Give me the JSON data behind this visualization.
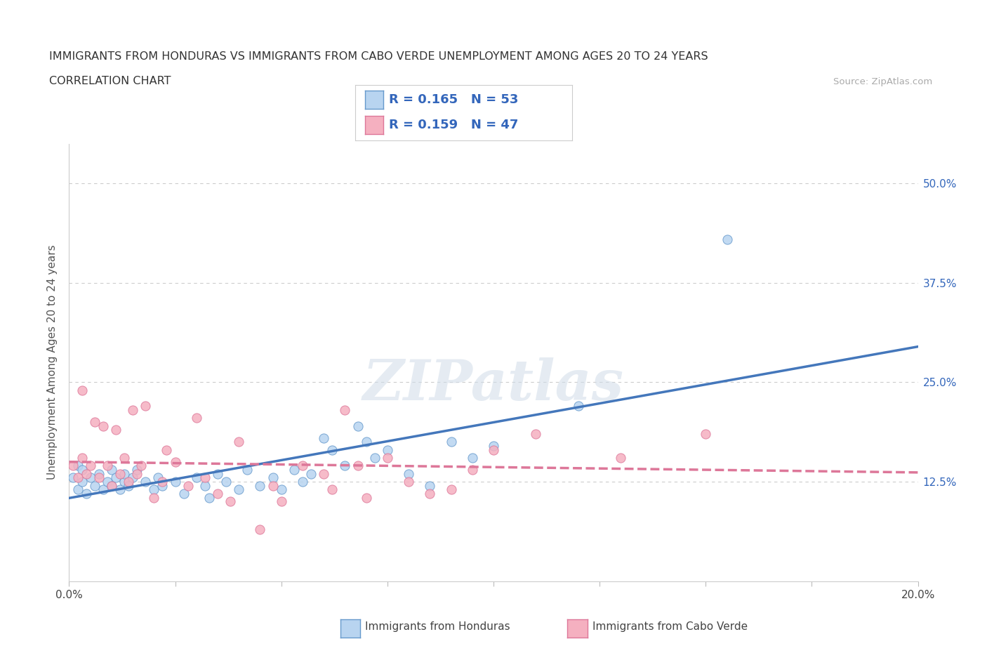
{
  "title_line1": "IMMIGRANTS FROM HONDURAS VS IMMIGRANTS FROM CABO VERDE UNEMPLOYMENT AMONG AGES 20 TO 24 YEARS",
  "title_line2": "CORRELATION CHART",
  "source_text": "Source: ZipAtlas.com",
  "ylabel": "Unemployment Among Ages 20 to 24 years",
  "xlim": [
    0.0,
    0.2
  ],
  "ylim": [
    0.0,
    0.55
  ],
  "xticks": [
    0.0,
    0.025,
    0.05,
    0.075,
    0.1,
    0.125,
    0.15,
    0.175,
    0.2
  ],
  "yticks_right": [
    0.0,
    0.125,
    0.25,
    0.375,
    0.5
  ],
  "yticklabels_right": [
    "",
    "12.5%",
    "25.0%",
    "37.5%",
    "50.0%"
  ],
  "grid_color": "#cccccc",
  "background_color": "#ffffff",
  "honduras_color": "#b8d4f0",
  "cabo_verde_color": "#f5b0c0",
  "honduras_edge_color": "#6699cc",
  "cabo_verde_edge_color": "#dd7799",
  "honduras_line_color": "#4477bb",
  "cabo_verde_line_color": "#dd7799",
  "R_honduras": 0.165,
  "N_honduras": 53,
  "R_cabo_verde": 0.159,
  "N_cabo_verde": 47,
  "watermark": "ZIPatlas",
  "honduras_x": [
    0.001,
    0.002,
    0.002,
    0.003,
    0.003,
    0.004,
    0.005,
    0.006,
    0.007,
    0.008,
    0.009,
    0.01,
    0.01,
    0.011,
    0.012,
    0.013,
    0.013,
    0.014,
    0.015,
    0.016,
    0.018,
    0.02,
    0.021,
    0.022,
    0.025,
    0.027,
    0.03,
    0.032,
    0.033,
    0.035,
    0.037,
    0.04,
    0.042,
    0.045,
    0.048,
    0.05,
    0.053,
    0.055,
    0.057,
    0.06,
    0.062,
    0.065,
    0.068,
    0.07,
    0.072,
    0.075,
    0.08,
    0.085,
    0.09,
    0.095,
    0.1,
    0.12,
    0.155
  ],
  "honduras_y": [
    0.13,
    0.115,
    0.145,
    0.125,
    0.14,
    0.11,
    0.13,
    0.12,
    0.135,
    0.115,
    0.125,
    0.12,
    0.14,
    0.13,
    0.115,
    0.125,
    0.135,
    0.12,
    0.13,
    0.14,
    0.125,
    0.115,
    0.13,
    0.12,
    0.125,
    0.11,
    0.13,
    0.12,
    0.105,
    0.135,
    0.125,
    0.115,
    0.14,
    0.12,
    0.13,
    0.115,
    0.14,
    0.125,
    0.135,
    0.18,
    0.165,
    0.145,
    0.195,
    0.175,
    0.155,
    0.165,
    0.135,
    0.12,
    0.175,
    0.155,
    0.17,
    0.22,
    0.43
  ],
  "cabo_verde_x": [
    0.001,
    0.002,
    0.003,
    0.003,
    0.004,
    0.005,
    0.006,
    0.007,
    0.008,
    0.009,
    0.01,
    0.011,
    0.012,
    0.013,
    0.014,
    0.015,
    0.016,
    0.017,
    0.018,
    0.02,
    0.022,
    0.023,
    0.025,
    0.028,
    0.03,
    0.032,
    0.035,
    0.038,
    0.04,
    0.045,
    0.048,
    0.05,
    0.055,
    0.06,
    0.062,
    0.065,
    0.068,
    0.07,
    0.075,
    0.08,
    0.085,
    0.09,
    0.095,
    0.1,
    0.11,
    0.13,
    0.15
  ],
  "cabo_verde_y": [
    0.145,
    0.13,
    0.155,
    0.24,
    0.135,
    0.145,
    0.2,
    0.13,
    0.195,
    0.145,
    0.12,
    0.19,
    0.135,
    0.155,
    0.125,
    0.215,
    0.135,
    0.145,
    0.22,
    0.105,
    0.125,
    0.165,
    0.15,
    0.12,
    0.205,
    0.13,
    0.11,
    0.1,
    0.175,
    0.065,
    0.12,
    0.1,
    0.145,
    0.135,
    0.115,
    0.215,
    0.145,
    0.105,
    0.155,
    0.125,
    0.11,
    0.115,
    0.14,
    0.165,
    0.185,
    0.155,
    0.185
  ]
}
